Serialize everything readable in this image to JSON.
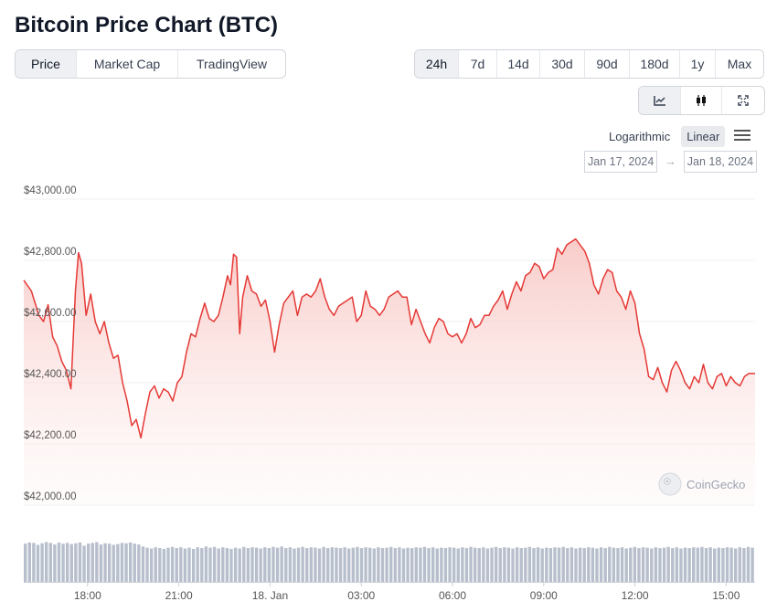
{
  "page_title": "Bitcoin Price Chart (BTC)",
  "metric_tabs": [
    {
      "label": "Price",
      "active": true
    },
    {
      "label": "Market Cap",
      "active": false
    },
    {
      "label": "TradingView",
      "active": false
    }
  ],
  "range_tabs": [
    {
      "label": "24h",
      "active": true
    },
    {
      "label": "7d",
      "active": false
    },
    {
      "label": "14d",
      "active": false
    },
    {
      "label": "30d",
      "active": false
    },
    {
      "label": "90d",
      "active": false
    },
    {
      "label": "180d",
      "active": false
    },
    {
      "label": "1y",
      "active": false
    },
    {
      "label": "Max",
      "active": false
    }
  ],
  "view_buttons": [
    {
      "icon": "line-chart-icon",
      "active": true
    },
    {
      "icon": "candlestick-icon",
      "active": false
    },
    {
      "icon": "fullscreen-icon",
      "active": false
    }
  ],
  "scale": {
    "logarithmic_label": "Logarithmic",
    "linear_label": "Linear",
    "selected": "Linear"
  },
  "date_range": {
    "from": "Jan 17, 2024",
    "arrow": "→",
    "to": "Jan 18, 2024"
  },
  "watermark": "CoinGecko",
  "colors": {
    "line": "#e53935",
    "fill": "#fbd7d5",
    "volume": "#b8bfcc",
    "grid": "#eef0f2"
  },
  "chart_data": {
    "type": "line",
    "y_tick_labels": [
      "$43,000.00",
      "$42,800.00",
      "$42,600.00",
      "$42,400.00",
      "$42,200.00",
      "$42,000.00"
    ],
    "y_ticks": [
      43000,
      42800,
      42600,
      42400,
      42200,
      42000
    ],
    "ylim": [
      42000,
      43000
    ],
    "x_tick_labels": [
      "18:00",
      "21:00",
      "18. Jan",
      "03:00",
      "06:00",
      "09:00",
      "12:00",
      "15:00"
    ],
    "x_ticks": [
      -6,
      -3,
      0,
      3,
      6,
      9,
      12,
      15
    ],
    "xlim": [
      -8.1,
      15.95
    ],
    "series": [
      {
        "points": [
          [
            -8.1,
            42735
          ],
          [
            -7.85,
            42700
          ],
          [
            -7.6,
            42620
          ],
          [
            -7.45,
            42600
          ],
          [
            -7.3,
            42655
          ],
          [
            -7.15,
            42550
          ],
          [
            -7.0,
            42520
          ],
          [
            -6.85,
            42470
          ],
          [
            -6.7,
            42440
          ],
          [
            -6.55,
            42380
          ],
          [
            -6.4,
            42700
          ],
          [
            -6.3,
            42825
          ],
          [
            -6.2,
            42790
          ],
          [
            -6.05,
            42620
          ],
          [
            -5.9,
            42690
          ],
          [
            -5.75,
            42600
          ],
          [
            -5.6,
            42560
          ],
          [
            -5.45,
            42600
          ],
          [
            -5.3,
            42530
          ],
          [
            -5.15,
            42480
          ],
          [
            -5.0,
            42490
          ],
          [
            -4.85,
            42400
          ],
          [
            -4.7,
            42340
          ],
          [
            -4.55,
            42260
          ],
          [
            -4.4,
            42280
          ],
          [
            -4.25,
            42220
          ],
          [
            -4.1,
            42300
          ],
          [
            -3.95,
            42370
          ],
          [
            -3.8,
            42390
          ],
          [
            -3.65,
            42350
          ],
          [
            -3.5,
            42380
          ],
          [
            -3.35,
            42370
          ],
          [
            -3.2,
            42340
          ],
          [
            -3.05,
            42400
          ],
          [
            -2.9,
            42420
          ],
          [
            -2.75,
            42500
          ],
          [
            -2.6,
            42560
          ],
          [
            -2.45,
            42550
          ],
          [
            -2.3,
            42610
          ],
          [
            -2.15,
            42660
          ],
          [
            -2.0,
            42610
          ],
          [
            -1.85,
            42600
          ],
          [
            -1.7,
            42620
          ],
          [
            -1.55,
            42680
          ],
          [
            -1.4,
            42750
          ],
          [
            -1.3,
            42720
          ],
          [
            -1.2,
            42820
          ],
          [
            -1.1,
            42810
          ],
          [
            -1.0,
            42560
          ],
          [
            -0.9,
            42680
          ],
          [
            -0.75,
            42750
          ],
          [
            -0.6,
            42700
          ],
          [
            -0.45,
            42690
          ],
          [
            -0.3,
            42650
          ],
          [
            -0.15,
            42670
          ],
          [
            0.0,
            42600
          ],
          [
            0.15,
            42500
          ],
          [
            0.3,
            42590
          ],
          [
            0.45,
            42660
          ],
          [
            0.6,
            42680
          ],
          [
            0.75,
            42700
          ],
          [
            0.9,
            42620
          ],
          [
            1.05,
            42680
          ],
          [
            1.2,
            42690
          ],
          [
            1.35,
            42680
          ],
          [
            1.5,
            42700
          ],
          [
            1.65,
            42740
          ],
          [
            1.8,
            42680
          ],
          [
            1.95,
            42640
          ],
          [
            2.1,
            42620
          ],
          [
            2.25,
            42650
          ],
          [
            2.4,
            42660
          ],
          [
            2.55,
            42670
          ],
          [
            2.7,
            42680
          ],
          [
            2.85,
            42600
          ],
          [
            3.0,
            42620
          ],
          [
            3.15,
            42700
          ],
          [
            3.3,
            42650
          ],
          [
            3.45,
            42640
          ],
          [
            3.6,
            42620
          ],
          [
            3.75,
            42640
          ],
          [
            3.9,
            42680
          ],
          [
            4.05,
            42690
          ],
          [
            4.2,
            42700
          ],
          [
            4.35,
            42680
          ],
          [
            4.5,
            42680
          ],
          [
            4.65,
            42590
          ],
          [
            4.8,
            42640
          ],
          [
            4.95,
            42600
          ],
          [
            5.1,
            42560
          ],
          [
            5.25,
            42530
          ],
          [
            5.4,
            42580
          ],
          [
            5.55,
            42610
          ],
          [
            5.7,
            42600
          ],
          [
            5.85,
            42560
          ],
          [
            6.0,
            42550
          ],
          [
            6.15,
            42560
          ],
          [
            6.3,
            42530
          ],
          [
            6.45,
            42560
          ],
          [
            6.6,
            42610
          ],
          [
            6.75,
            42580
          ],
          [
            6.9,
            42590
          ],
          [
            7.05,
            42620
          ],
          [
            7.2,
            42620
          ],
          [
            7.35,
            42650
          ],
          [
            7.5,
            42670
          ],
          [
            7.65,
            42700
          ],
          [
            7.8,
            42640
          ],
          [
            7.95,
            42690
          ],
          [
            8.1,
            42730
          ],
          [
            8.25,
            42700
          ],
          [
            8.4,
            42750
          ],
          [
            8.55,
            42760
          ],
          [
            8.7,
            42790
          ],
          [
            8.85,
            42780
          ],
          [
            9.0,
            42740
          ],
          [
            9.15,
            42760
          ],
          [
            9.3,
            42770
          ],
          [
            9.45,
            42840
          ],
          [
            9.6,
            42820
          ],
          [
            9.75,
            42850
          ],
          [
            9.9,
            42860
          ],
          [
            10.05,
            42870
          ],
          [
            10.2,
            42850
          ],
          [
            10.35,
            42830
          ],
          [
            10.5,
            42790
          ],
          [
            10.65,
            42720
          ],
          [
            10.8,
            42690
          ],
          [
            10.95,
            42740
          ],
          [
            11.1,
            42770
          ],
          [
            11.25,
            42760
          ],
          [
            11.4,
            42700
          ],
          [
            11.55,
            42680
          ],
          [
            11.7,
            42640
          ],
          [
            11.85,
            42700
          ],
          [
            12.0,
            42660
          ],
          [
            12.15,
            42560
          ],
          [
            12.3,
            42510
          ],
          [
            12.45,
            42420
          ],
          [
            12.6,
            42410
          ],
          [
            12.75,
            42450
          ],
          [
            12.9,
            42400
          ],
          [
            13.05,
            42370
          ],
          [
            13.2,
            42440
          ],
          [
            13.35,
            42470
          ],
          [
            13.5,
            42440
          ],
          [
            13.65,
            42400
          ],
          [
            13.8,
            42380
          ],
          [
            13.95,
            42420
          ],
          [
            14.1,
            42400
          ],
          [
            14.25,
            42460
          ],
          [
            14.4,
            42400
          ],
          [
            14.55,
            42380
          ],
          [
            14.7,
            42420
          ],
          [
            14.85,
            42430
          ],
          [
            15.0,
            42390
          ],
          [
            15.15,
            42420
          ],
          [
            15.3,
            42400
          ],
          [
            15.45,
            42390
          ],
          [
            15.6,
            42420
          ],
          [
            15.75,
            42430
          ],
          [
            15.95,
            42430
          ]
        ]
      }
    ],
    "volume_relative": [
      0.95,
      0.98,
      0.97,
      0.92,
      0.96,
      0.99,
      0.97,
      0.93,
      0.98,
      0.95,
      0.97,
      0.94,
      0.96,
      0.98,
      0.9,
      0.95,
      0.97,
      0.99,
      0.93,
      0.96,
      0.95,
      0.92,
      0.94,
      0.97,
      0.96,
      0.98,
      0.95,
      0.93,
      0.88,
      0.85,
      0.83,
      0.86,
      0.84,
      0.82,
      0.85,
      0.87,
      0.84,
      0.86,
      0.83,
      0.85,
      0.82,
      0.86,
      0.84,
      0.88,
      0.85,
      0.87,
      0.83,
      0.86,
      0.84,
      0.82,
      0.85,
      0.83,
      0.87,
      0.84,
      0.86,
      0.85,
      0.83,
      0.86,
      0.84,
      0.87,
      0.85,
      0.88,
      0.84,
      0.86,
      0.83,
      0.85,
      0.87,
      0.84,
      0.86,
      0.85,
      0.83,
      0.87,
      0.84,
      0.86,
      0.85,
      0.84,
      0.86,
      0.83,
      0.85,
      0.87,
      0.84,
      0.86,
      0.85,
      0.83,
      0.86,
      0.84,
      0.85,
      0.87,
      0.84,
      0.86,
      0.83,
      0.85,
      0.84,
      0.86,
      0.85,
      0.87,
      0.84,
      0.86,
      0.83,
      0.85,
      0.84,
      0.86,
      0.85,
      0.83,
      0.86,
      0.84,
      0.87,
      0.85,
      0.84,
      0.86,
      0.83,
      0.85,
      0.87,
      0.84,
      0.86,
      0.85,
      0.83,
      0.86,
      0.84,
      0.85,
      0.87,
      0.84,
      0.86,
      0.83,
      0.85,
      0.84,
      0.86,
      0.85,
      0.87,
      0.84,
      0.86,
      0.83,
      0.85,
      0.84,
      0.86,
      0.85,
      0.83,
      0.86,
      0.84,
      0.87,
      0.85,
      0.84,
      0.86,
      0.83,
      0.85,
      0.87,
      0.84,
      0.86,
      0.85,
      0.83,
      0.86,
      0.84,
      0.85,
      0.87,
      0.84,
      0.86,
      0.83,
      0.85,
      0.84,
      0.86,
      0.85,
      0.87,
      0.84,
      0.86,
      0.83,
      0.85,
      0.84,
      0.86,
      0.85,
      0.83,
      0.86,
      0.84,
      0.87,
      0.85
    ]
  }
}
